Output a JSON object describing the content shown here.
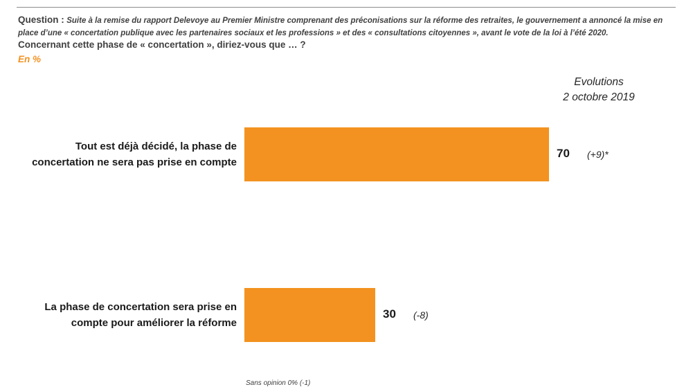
{
  "question": {
    "label": "Question :",
    "text": "Suite à la remise du rapport Delevoye au Premier Ministre comprenant des préconisations sur la réforme des retraites, le gouvernement a annoncé la mise en place d’une « concertation publique avec les partenaires sociaux et les professions » et des « consultations citoyennes », avant le vote de la loi à l’été 2020.",
    "subquestion": "Concernant cette phase de « concertation », diriez-vous que … ?",
    "unit": "En  %"
  },
  "evolutions": {
    "title": "Evolutions",
    "date": "2 octobre 2019"
  },
  "chart_data": {
    "type": "bar",
    "orientation": "horizontal",
    "categories": [
      "Tout est déjà décidé, la phase de concertation ne sera pas prise en compte",
      "La phase de concertation sera prise en compte pour améliorer la réforme"
    ],
    "values": [
      70,
      30
    ],
    "value_labels": [
      "70",
      "30"
    ],
    "evolutions": [
      "(+9)*",
      "(-8)"
    ],
    "color": "#f39220",
    "xlim": [
      0,
      100
    ],
    "title": "",
    "xlabel": "",
    "ylabel": ""
  },
  "footnote": "Sans opinion 0% (-1)"
}
